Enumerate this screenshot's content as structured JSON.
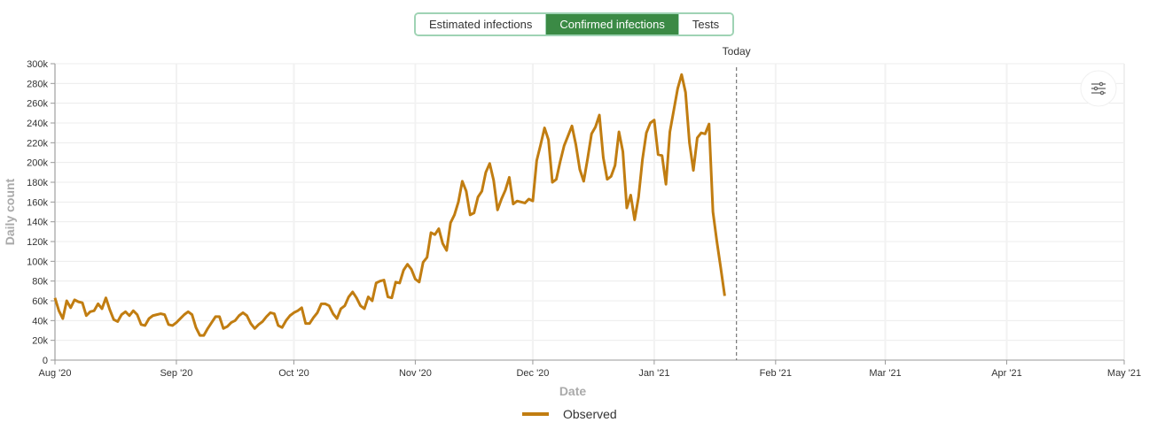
{
  "tabs": [
    {
      "label": "Estimated infections",
      "active": false
    },
    {
      "label": "Confirmed infections",
      "active": true
    },
    {
      "label": "Tests",
      "active": false
    }
  ],
  "today_label": "Today",
  "settings_icon": "sliders-icon",
  "colors": {
    "series": "#c17d11",
    "tab_active": "#3b8a45",
    "tab_border": "#9fd3b4"
  },
  "chart_data": {
    "type": "line",
    "xlabel": "Date",
    "ylabel": "Daily count",
    "x_ticks": [
      "Aug '20",
      "Sep '20",
      "Oct '20",
      "Nov '20",
      "Dec '20",
      "Jan '21",
      "Feb '21",
      "Mar '21",
      "Apr '21",
      "May '21"
    ],
    "y_ticks": [
      "0",
      "20k",
      "40k",
      "60k",
      "80k",
      "100k",
      "120k",
      "140k",
      "160k",
      "180k",
      "200k",
      "220k",
      "240k",
      "260k",
      "280k",
      "300k"
    ],
    "ylim": [
      0,
      300000
    ],
    "xlim": [
      "2020-08-01",
      "2021-05-01"
    ],
    "today": "2021-01-22",
    "legend": {
      "position": "bottom",
      "entries": [
        "Observed"
      ]
    },
    "grid": true,
    "series": [
      {
        "name": "Observed",
        "start": "2020-08-01",
        "interval": "1 day",
        "values": [
          63000,
          50000,
          42000,
          60000,
          53000,
          61000,
          59000,
          58000,
          45000,
          49000,
          50000,
          57000,
          52000,
          63000,
          51000,
          41000,
          39000,
          46000,
          49000,
          45000,
          50000,
          46000,
          36000,
          35000,
          42000,
          45000,
          46000,
          47000,
          46000,
          36000,
          35000,
          38000,
          42000,
          46000,
          49000,
          46000,
          33000,
          25000,
          25000,
          32000,
          38000,
          44000,
          44000,
          32000,
          34000,
          38000,
          40000,
          45000,
          48000,
          45000,
          37000,
          32000,
          36000,
          39000,
          44000,
          48000,
          47000,
          35000,
          33000,
          40000,
          45000,
          48000,
          50000,
          53000,
          37000,
          37000,
          43000,
          48000,
          57000,
          57000,
          55000,
          47000,
          42000,
          52000,
          55000,
          64000,
          69000,
          63000,
          55000,
          52000,
          64000,
          60000,
          78000,
          80000,
          81000,
          64000,
          63000,
          79000,
          78000,
          91000,
          97000,
          92000,
          82000,
          79000,
          99000,
          104000,
          129000,
          127000,
          133000,
          118000,
          111000,
          139000,
          147000,
          160000,
          181000,
          171000,
          147000,
          149000,
          165000,
          171000,
          190000,
          199000,
          182000,
          152000,
          163000,
          172000,
          185000,
          158000,
          161000,
          160000,
          159000,
          163000,
          161000,
          202000,
          218000,
          235000,
          223000,
          180000,
          183000,
          201000,
          217000,
          227000,
          237000,
          218000,
          193000,
          181000,
          204000,
          229000,
          236000,
          248000,
          205000,
          183000,
          186000,
          197000,
          231000,
          211000,
          154000,
          167000,
          142000,
          165000,
          203000,
          230000,
          240000,
          243000,
          208000,
          207000,
          178000,
          231000,
          253000,
          275000,
          289000,
          271000,
          220000,
          192000,
          225000,
          230000,
          229000,
          239000,
          150000,
          120000,
          93000,
          65000
        ]
      }
    ]
  }
}
